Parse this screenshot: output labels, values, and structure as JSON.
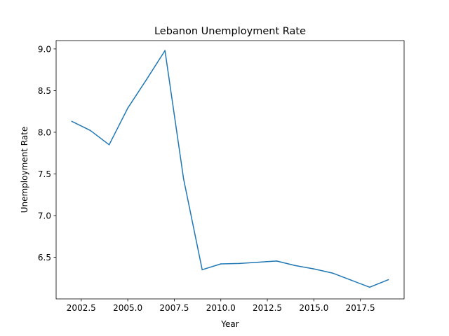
{
  "chart_data": {
    "type": "line",
    "title": "Lebanon Unemployment Rate",
    "xlabel": "Year",
    "ylabel": "Unemployment Rate",
    "xlim": [
      2001.15,
      2019.85
    ],
    "ylim": [
      6.0,
      9.1
    ],
    "x_ticks": [
      2002.5,
      2005.0,
      2007.5,
      2010.0,
      2012.5,
      2015.0,
      2017.5
    ],
    "x_tick_labels": [
      "2002.5",
      "2005.0",
      "2007.5",
      "2010.0",
      "2012.5",
      "2015.0",
      "2017.5"
    ],
    "y_ticks": [
      6.5,
      7.0,
      7.5,
      8.0,
      8.5,
      9.0
    ],
    "y_tick_labels": [
      "6.5",
      "7.0",
      "7.5",
      "8.0",
      "8.5",
      "9.0"
    ],
    "grid": false,
    "series": [
      {
        "color": "#1f77b4",
        "x": [
          2002,
          2003,
          2004,
          2005,
          2006,
          2007,
          2008,
          2009,
          2010,
          2011,
          2012,
          2013,
          2014,
          2015,
          2016,
          2017,
          2018,
          2019
        ],
        "values": [
          8.13,
          8.02,
          7.85,
          8.29,
          8.63,
          8.98,
          7.44,
          6.35,
          6.42,
          6.425,
          6.44,
          6.455,
          6.4,
          6.36,
          6.31,
          6.225,
          6.14,
          6.23
        ]
      }
    ]
  }
}
